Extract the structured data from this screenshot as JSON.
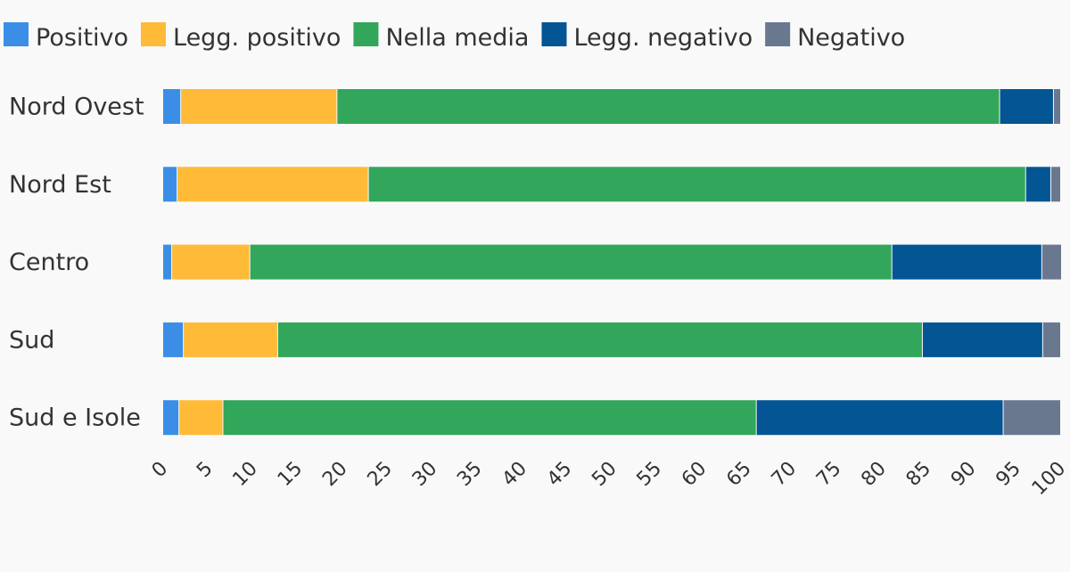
{
  "chart_data": {
    "type": "bar",
    "orientation": "horizontal",
    "stacked": true,
    "categories": [
      "Nord Ovest",
      "Nord Est",
      "Centro",
      "Sud",
      "Sud e Isole"
    ],
    "series": [
      {
        "name": "Positivo",
        "color": "#3a8ee6",
        "values": [
          2.0,
          1.6,
          1.0,
          2.3,
          1.8
        ]
      },
      {
        "name": "Legg. positivo",
        "color": "#ffba38",
        "values": [
          17.4,
          21.3,
          8.7,
          10.5,
          4.9
        ]
      },
      {
        "name": "Nella media",
        "color": "#32a65a",
        "values": [
          73.8,
          73.2,
          71.5,
          71.8,
          59.4
        ]
      },
      {
        "name": "Legg. negativo",
        "color": "#035593",
        "values": [
          6.0,
          2.8,
          16.7,
          13.4,
          27.5
        ]
      },
      {
        "name": "Negativo",
        "color": "#6a788f",
        "values": [
          0.8,
          1.1,
          2.2,
          2.0,
          6.4
        ]
      }
    ],
    "xlim": [
      0,
      100
    ],
    "xticks": [
      "0",
      "5",
      "10",
      "15",
      "20",
      "25",
      "30",
      "35",
      "40",
      "45",
      "50",
      "55",
      "60",
      "65",
      "70",
      "75",
      "80",
      "85",
      "90",
      "95",
      "100"
    ],
    "legend_position": "top-left",
    "grid": false,
    "title": "",
    "xlabel": "",
    "ylabel": ""
  }
}
